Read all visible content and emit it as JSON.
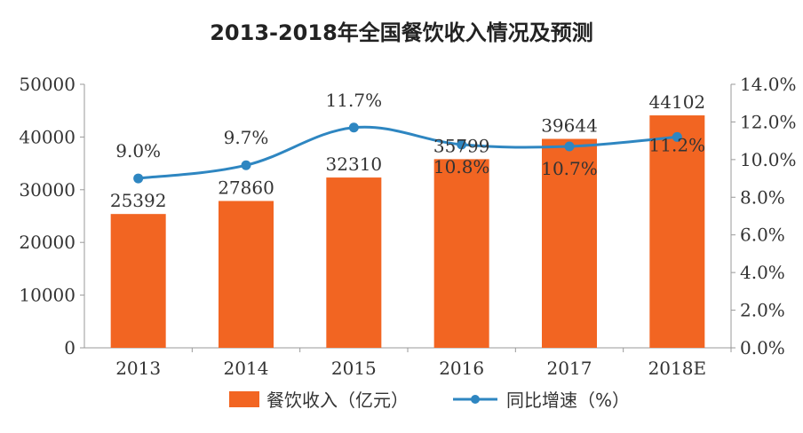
{
  "chart_data": {
    "type": "bar",
    "title": "2013-2018年全国餐饮收入情况及预测",
    "categories": [
      "2013",
      "2014",
      "2015",
      "2016",
      "2017",
      "2018E"
    ],
    "series": [
      {
        "name": "餐饮收入（亿元）",
        "type": "bar",
        "axis": "left",
        "values": [
          25392,
          27860,
          32310,
          35799,
          39644,
          44102
        ],
        "labels": [
          "25392",
          "27860",
          "32310",
          "35799",
          "39644",
          "44102"
        ]
      },
      {
        "name": "同比增速（%）",
        "type": "line",
        "axis": "right",
        "values": [
          9.0,
          9.7,
          11.7,
          10.8,
          10.7,
          11.2
        ],
        "labels": [
          "9.0%",
          "9.7%",
          "11.7%",
          "10.8%",
          "10.7%",
          "11.2%"
        ]
      }
    ],
    "y_left": {
      "min": 0,
      "max": 50000,
      "ticks": [
        "0",
        "10000",
        "20000",
        "30000",
        "40000",
        "50000"
      ]
    },
    "y_right": {
      "min": 0,
      "max": 14,
      "ticks": [
        "0.0%",
        "2.0%",
        "4.0%",
        "6.0%",
        "8.0%",
        "10.0%",
        "12.0%",
        "14.0%"
      ]
    },
    "grid": false,
    "legend_position": "bottom",
    "colors": {
      "bar": "#f26522",
      "line": "#2e86c1",
      "axis": "#999999"
    }
  }
}
